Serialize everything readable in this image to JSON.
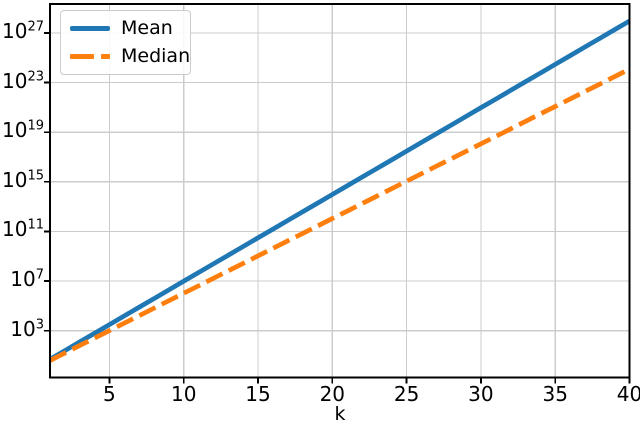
{
  "chart_data": {
    "type": "line",
    "title": "",
    "xlabel": "k",
    "ylabel": "",
    "yscale": "log",
    "grid": true,
    "legend_position": "upper left",
    "xlim": [
      1,
      40
    ],
    "ylim_log10": [
      -0.77,
      29.33
    ],
    "xticks": [
      5,
      10,
      15,
      20,
      25,
      30,
      35,
      40
    ],
    "ytick_exponents": [
      3,
      7,
      11,
      15,
      19,
      23,
      27
    ],
    "ytick_base": "10",
    "x": [
      1,
      2,
      3,
      4,
      5,
      6,
      7,
      8,
      9,
      10,
      11,
      12,
      13,
      14,
      15,
      16,
      17,
      18,
      19,
      20,
      21,
      22,
      23,
      24,
      25,
      26,
      27,
      28,
      29,
      30,
      31,
      32,
      33,
      34,
      35,
      36,
      37,
      38,
      39,
      40
    ],
    "series": [
      {
        "name": "Mean",
        "color": "#1f77b4",
        "style": "solid",
        "values": [
          5,
          25,
          125,
          625,
          3125,
          15625,
          78125,
          390625,
          1953125,
          9765625,
          48830000.0,
          244100000.0,
          1221000000.0,
          6104000000.0,
          30520000000.0,
          152600000000.0,
          762900000000.0,
          3815000000000.0,
          19070000000000.0,
          95370000000000.0,
          476800000000000.0,
          2384000000000000.0,
          1.192e+16,
          5.96e+16,
          2.98e+17,
          1.49e+18,
          7.451e+18,
          3.725e+19,
          1.863e+20,
          9.313e+20,
          4.657e+21,
          2.328e+22,
          1.164e+23,
          5.821e+23,
          2.91e+24,
          1.455e+25,
          7.276e+25,
          3.638e+26,
          1.819e+27,
          9.095e+27
        ]
      },
      {
        "name": "Median",
        "color": "#ff7f0e",
        "style": "dashed",
        "values": [
          4,
          16,
          64,
          256,
          1024,
          4096,
          16384,
          65536,
          262144,
          1048576,
          4194304,
          16780000.0,
          67110000.0,
          268400000.0,
          1074000000.0,
          4295000000.0,
          17180000000.0,
          68720000000.0,
          274900000000.0,
          1100000000000.0,
          4398000000000.0,
          17590000000000.0,
          70370000000000.0,
          281500000000000.0,
          1126000000000000.0,
          4504000000000000.0,
          1.801e+16,
          7.206e+16,
          2.882e+17,
          1.153e+18,
          4.612e+18,
          1.845e+19,
          7.379e+19,
          2.951e+20,
          1.181e+21,
          4.722e+21,
          1.889e+22,
          7.556e+22,
          3.022e+23,
          1.209e+24
        ]
      }
    ],
    "colors": {
      "grid": "#cccccc",
      "spine": "#000000",
      "text": "#000000",
      "background": "#ffffff"
    }
  }
}
